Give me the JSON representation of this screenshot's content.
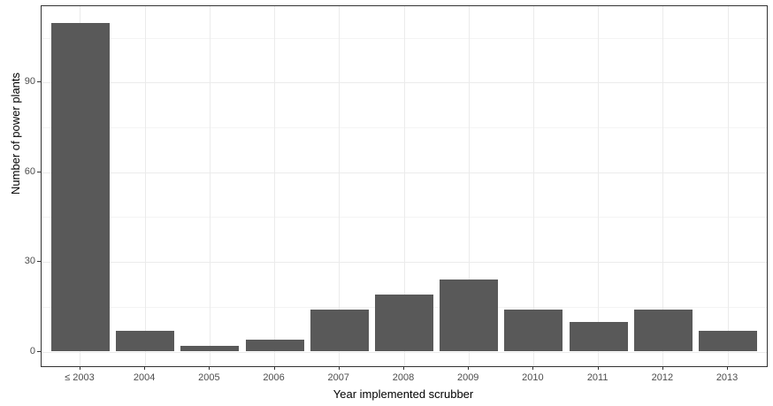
{
  "chart_data": {
    "type": "bar",
    "categories": [
      "≤ 2003",
      "2004",
      "2005",
      "2006",
      "2007",
      "2008",
      "2009",
      "2010",
      "2011",
      "2012",
      "2013"
    ],
    "values": [
      110,
      7,
      2,
      4,
      14,
      19,
      24,
      14,
      10,
      14,
      7
    ],
    "title": "",
    "xlabel": "Year implemented scrubber",
    "ylabel": "Number of power plants",
    "yticks": [
      0,
      30,
      60,
      90
    ],
    "yticks_minor": [
      15,
      45,
      75,
      105
    ],
    "ylim": [
      0,
      115.5
    ],
    "grid": "on",
    "legend": "none",
    "bar_color": "#595959",
    "panel_background": "#ffffff",
    "panel_border_color": "#333333",
    "grid_major_color": "#ebebeb",
    "grid_minor_color": "#f4f4f4",
    "tick_label_color": "#4d4d4d",
    "axis_title_color": "#000000"
  }
}
